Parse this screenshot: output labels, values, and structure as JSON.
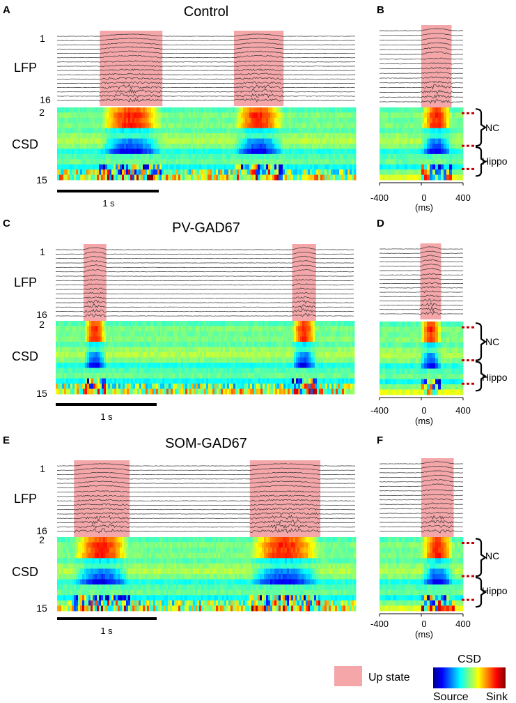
{
  "legend": {
    "up_state_label": "Up state",
    "up_state_color": "#f4a6a9",
    "colorbar_title": "CSD",
    "colorbar_low": "Source",
    "colorbar_high": "Sink"
  },
  "colormap": [
    "#00008f",
    "#0000ff",
    "#0080ff",
    "#00ffff",
    "#80ff80",
    "#ffff00",
    "#ff8000",
    "#ff0000",
    "#800000"
  ],
  "common": {
    "lfp_label": "LFP",
    "csd_label": "CSD",
    "lfp_channel_top": "1",
    "lfp_channel_bottom": "16",
    "csd_channel_top": "2",
    "csd_channel_bottom": "15",
    "lfp_channel_count": 16,
    "scale_bar_label": "1 s",
    "scale_bar_seconds": 1,
    "avg_window_ms": [
      -400,
      400
    ],
    "avg_ticks": [
      "-400",
      "0",
      "400"
    ],
    "avg_unit": "(ms)",
    "region_nc": "NC",
    "region_hippo": "Hippo"
  },
  "panels": [
    {
      "letter": "A",
      "title": "Control",
      "duration_s": 3.0,
      "up_states_s": [
        [
          0.43,
          1.06
        ],
        [
          1.78,
          2.28
        ]
      ]
    },
    {
      "letter": "B",
      "avg_up_state_ms": [
        0,
        290
      ]
    },
    {
      "letter": "C",
      "title": "PV-GAD67",
      "duration_s": 3.0,
      "up_states_s": [
        [
          0.28,
          0.51
        ],
        [
          2.38,
          2.62
        ]
      ]
    },
    {
      "letter": "D",
      "avg_up_state_ms": [
        -10,
        190
      ]
    },
    {
      "letter": "E",
      "title": "SOM-GAD67",
      "duration_s": 3.0,
      "up_states_s": [
        [
          0.17,
          0.73
        ],
        [
          1.94,
          2.65
        ]
      ]
    },
    {
      "letter": "F",
      "avg_up_state_ms": [
        0,
        310
      ]
    }
  ]
}
